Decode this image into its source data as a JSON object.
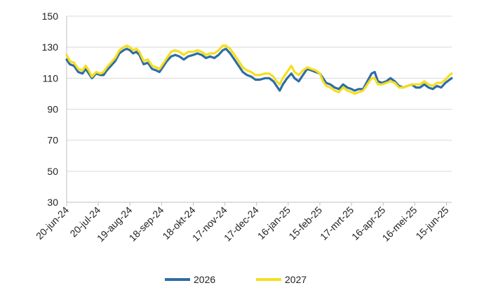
{
  "chart_data": {
    "type": "line",
    "title": "",
    "xlabel": "",
    "ylabel": "",
    "ylim": [
      30,
      150
    ],
    "yticks": [
      30,
      50,
      70,
      90,
      110,
      130,
      150
    ],
    "x_range": [
      "2024-06-20",
      "2025-06-20"
    ],
    "xticks": [
      {
        "date": "2024-06-20",
        "label": "20-jun-24"
      },
      {
        "date": "2024-07-20",
        "label": "20-jul-24"
      },
      {
        "date": "2024-08-19",
        "label": "19-aug-24"
      },
      {
        "date": "2024-09-18",
        "label": "18-sep-24"
      },
      {
        "date": "2024-10-18",
        "label": "18-okt-24"
      },
      {
        "date": "2024-11-17",
        "label": "17-nov-24"
      },
      {
        "date": "2024-12-17",
        "label": "17-dec-24"
      },
      {
        "date": "2025-01-16",
        "label": "16-jan-25"
      },
      {
        "date": "2025-02-15",
        "label": "15-feb-25"
      },
      {
        "date": "2025-03-17",
        "label": "17-mrt-25"
      },
      {
        "date": "2025-04-16",
        "label": "16-apr-25"
      },
      {
        "date": "2025-05-16",
        "label": "16-mei-25"
      },
      {
        "date": "2025-06-15",
        "label": "15-jun-25"
      }
    ],
    "grid": {
      "horizontal": true,
      "vertical": false
    },
    "legend_position": "bottom-center",
    "series": [
      {
        "name": "2026",
        "color": "#2e6da4",
        "points": [
          [
            "2024-06-20",
            122
          ],
          [
            "2024-06-23",
            119
          ],
          [
            "2024-06-27",
            118
          ],
          [
            "2024-07-01",
            114
          ],
          [
            "2024-07-05",
            113
          ],
          [
            "2024-07-08",
            116
          ],
          [
            "2024-07-11",
            113
          ],
          [
            "2024-07-14",
            110
          ],
          [
            "2024-07-18",
            113
          ],
          [
            "2024-07-22",
            112
          ],
          [
            "2024-07-25",
            112
          ],
          [
            "2024-07-28",
            115
          ],
          [
            "2024-08-01",
            118
          ],
          [
            "2024-08-05",
            121
          ],
          [
            "2024-08-09",
            126
          ],
          [
            "2024-08-13",
            128
          ],
          [
            "2024-08-16",
            129
          ],
          [
            "2024-08-19",
            128
          ],
          [
            "2024-08-22",
            126
          ],
          [
            "2024-08-25",
            127
          ],
          [
            "2024-08-28",
            125
          ],
          [
            "2024-09-01",
            119
          ],
          [
            "2024-09-05",
            120
          ],
          [
            "2024-09-09",
            116
          ],
          [
            "2024-09-13",
            115
          ],
          [
            "2024-09-16",
            114
          ],
          [
            "2024-09-19",
            117
          ],
          [
            "2024-09-23",
            121
          ],
          [
            "2024-09-27",
            124
          ],
          [
            "2024-10-01",
            125
          ],
          [
            "2024-10-05",
            124
          ],
          [
            "2024-10-09",
            122
          ],
          [
            "2024-10-13",
            124
          ],
          [
            "2024-10-18",
            125
          ],
          [
            "2024-10-22",
            126
          ],
          [
            "2024-10-26",
            125
          ],
          [
            "2024-10-30",
            123
          ],
          [
            "2024-11-03",
            124
          ],
          [
            "2024-11-07",
            123
          ],
          [
            "2024-11-11",
            125
          ],
          [
            "2024-11-15",
            128
          ],
          [
            "2024-11-18",
            129
          ],
          [
            "2024-11-22",
            126
          ],
          [
            "2024-11-26",
            122
          ],
          [
            "2024-11-30",
            118
          ],
          [
            "2024-12-04",
            114
          ],
          [
            "2024-12-08",
            112
          ],
          [
            "2024-12-12",
            111
          ],
          [
            "2024-12-16",
            109
          ],
          [
            "2024-12-20",
            109
          ],
          [
            "2024-12-25",
            110
          ],
          [
            "2024-12-29",
            110
          ],
          [
            "2025-01-02",
            108
          ],
          [
            "2025-01-05",
            105
          ],
          [
            "2025-01-08",
            102
          ],
          [
            "2025-01-11",
            106
          ],
          [
            "2025-01-15",
            110
          ],
          [
            "2025-01-19",
            113
          ],
          [
            "2025-01-22",
            110
          ],
          [
            "2025-01-26",
            108
          ],
          [
            "2025-01-30",
            112
          ],
          [
            "2025-02-03",
            116
          ],
          [
            "2025-02-07",
            115
          ],
          [
            "2025-02-11",
            114
          ],
          [
            "2025-02-15",
            113
          ],
          [
            "2025-02-18",
            110
          ],
          [
            "2025-02-21",
            107
          ],
          [
            "2025-02-25",
            106
          ],
          [
            "2025-03-01",
            104
          ],
          [
            "2025-03-05",
            103
          ],
          [
            "2025-03-09",
            106
          ],
          [
            "2025-03-13",
            104
          ],
          [
            "2025-03-17",
            103
          ],
          [
            "2025-03-20",
            102
          ],
          [
            "2025-03-24",
            103
          ],
          [
            "2025-03-28",
            103
          ],
          [
            "2025-04-01",
            108
          ],
          [
            "2025-04-05",
            113
          ],
          [
            "2025-04-08",
            114
          ],
          [
            "2025-04-11",
            108
          ],
          [
            "2025-04-15",
            107
          ],
          [
            "2025-04-19",
            108
          ],
          [
            "2025-04-23",
            110
          ],
          [
            "2025-04-27",
            108
          ],
          [
            "2025-05-01",
            105
          ],
          [
            "2025-05-05",
            104
          ],
          [
            "2025-05-09",
            105
          ],
          [
            "2025-05-13",
            106
          ],
          [
            "2025-05-17",
            104
          ],
          [
            "2025-05-21",
            104
          ],
          [
            "2025-05-25",
            106
          ],
          [
            "2025-05-29",
            104
          ],
          [
            "2025-06-02",
            103
          ],
          [
            "2025-06-06",
            105
          ],
          [
            "2025-06-10",
            104
          ],
          [
            "2025-06-14",
            107
          ],
          [
            "2025-06-18",
            109
          ],
          [
            "2025-06-20",
            110
          ]
        ]
      },
      {
        "name": "2027",
        "color": "#f5de1f",
        "points": [
          [
            "2024-06-20",
            125
          ],
          [
            "2024-06-23",
            121
          ],
          [
            "2024-06-27",
            120
          ],
          [
            "2024-07-01",
            116
          ],
          [
            "2024-07-05",
            115
          ],
          [
            "2024-07-08",
            118
          ],
          [
            "2024-07-11",
            115
          ],
          [
            "2024-07-14",
            111
          ],
          [
            "2024-07-18",
            114
          ],
          [
            "2024-07-22",
            113
          ],
          [
            "2024-07-25",
            114
          ],
          [
            "2024-07-28",
            117
          ],
          [
            "2024-08-01",
            120
          ],
          [
            "2024-08-05",
            123
          ],
          [
            "2024-08-09",
            128
          ],
          [
            "2024-08-13",
            130
          ],
          [
            "2024-08-16",
            131
          ],
          [
            "2024-08-19",
            130
          ],
          [
            "2024-08-22",
            128
          ],
          [
            "2024-08-25",
            129
          ],
          [
            "2024-08-28",
            127
          ],
          [
            "2024-09-01",
            121
          ],
          [
            "2024-09-05",
            122
          ],
          [
            "2024-09-09",
            118
          ],
          [
            "2024-09-13",
            117
          ],
          [
            "2024-09-16",
            116
          ],
          [
            "2024-09-19",
            119
          ],
          [
            "2024-09-23",
            123
          ],
          [
            "2024-09-27",
            127
          ],
          [
            "2024-10-01",
            128
          ],
          [
            "2024-10-05",
            127
          ],
          [
            "2024-10-09",
            125
          ],
          [
            "2024-10-13",
            127
          ],
          [
            "2024-10-18",
            127
          ],
          [
            "2024-10-22",
            128
          ],
          [
            "2024-10-26",
            127
          ],
          [
            "2024-10-30",
            125
          ],
          [
            "2024-11-03",
            126
          ],
          [
            "2024-11-07",
            126
          ],
          [
            "2024-11-11",
            128
          ],
          [
            "2024-11-15",
            131
          ],
          [
            "2024-11-18",
            131
          ],
          [
            "2024-11-22",
            129
          ],
          [
            "2024-11-26",
            125
          ],
          [
            "2024-11-30",
            121
          ],
          [
            "2024-12-04",
            117
          ],
          [
            "2024-12-08",
            115
          ],
          [
            "2024-12-12",
            114
          ],
          [
            "2024-12-16",
            112
          ],
          [
            "2024-12-20",
            112
          ],
          [
            "2024-12-25",
            113
          ],
          [
            "2024-12-29",
            113
          ],
          [
            "2025-01-02",
            111
          ],
          [
            "2025-01-05",
            108
          ],
          [
            "2025-01-08",
            106
          ],
          [
            "2025-01-11",
            110
          ],
          [
            "2025-01-15",
            114
          ],
          [
            "2025-01-19",
            118
          ],
          [
            "2025-01-22",
            114
          ],
          [
            "2025-01-26",
            112
          ],
          [
            "2025-01-30",
            115
          ],
          [
            "2025-02-03",
            117
          ],
          [
            "2025-02-07",
            116
          ],
          [
            "2025-02-11",
            115
          ],
          [
            "2025-02-15",
            113
          ],
          [
            "2025-02-18",
            108
          ],
          [
            "2025-02-21",
            105
          ],
          [
            "2025-02-25",
            104
          ],
          [
            "2025-03-01",
            102
          ],
          [
            "2025-03-05",
            101
          ],
          [
            "2025-03-09",
            104
          ],
          [
            "2025-03-13",
            102
          ],
          [
            "2025-03-17",
            101
          ],
          [
            "2025-03-20",
            100
          ],
          [
            "2025-03-24",
            101
          ],
          [
            "2025-03-28",
            102
          ],
          [
            "2025-04-01",
            106
          ],
          [
            "2025-04-05",
            110
          ],
          [
            "2025-04-08",
            110
          ],
          [
            "2025-04-11",
            106
          ],
          [
            "2025-04-15",
            106
          ],
          [
            "2025-04-19",
            107
          ],
          [
            "2025-04-23",
            108
          ],
          [
            "2025-04-27",
            107
          ],
          [
            "2025-05-01",
            104
          ],
          [
            "2025-05-05",
            104
          ],
          [
            "2025-05-09",
            105
          ],
          [
            "2025-05-13",
            106
          ],
          [
            "2025-05-17",
            106
          ],
          [
            "2025-05-21",
            106
          ],
          [
            "2025-05-25",
            108
          ],
          [
            "2025-05-29",
            106
          ],
          [
            "2025-06-02",
            105
          ],
          [
            "2025-06-06",
            107
          ],
          [
            "2025-06-10",
            107
          ],
          [
            "2025-06-14",
            109
          ],
          [
            "2025-06-18",
            112
          ],
          [
            "2025-06-20",
            113
          ]
        ]
      }
    ]
  }
}
